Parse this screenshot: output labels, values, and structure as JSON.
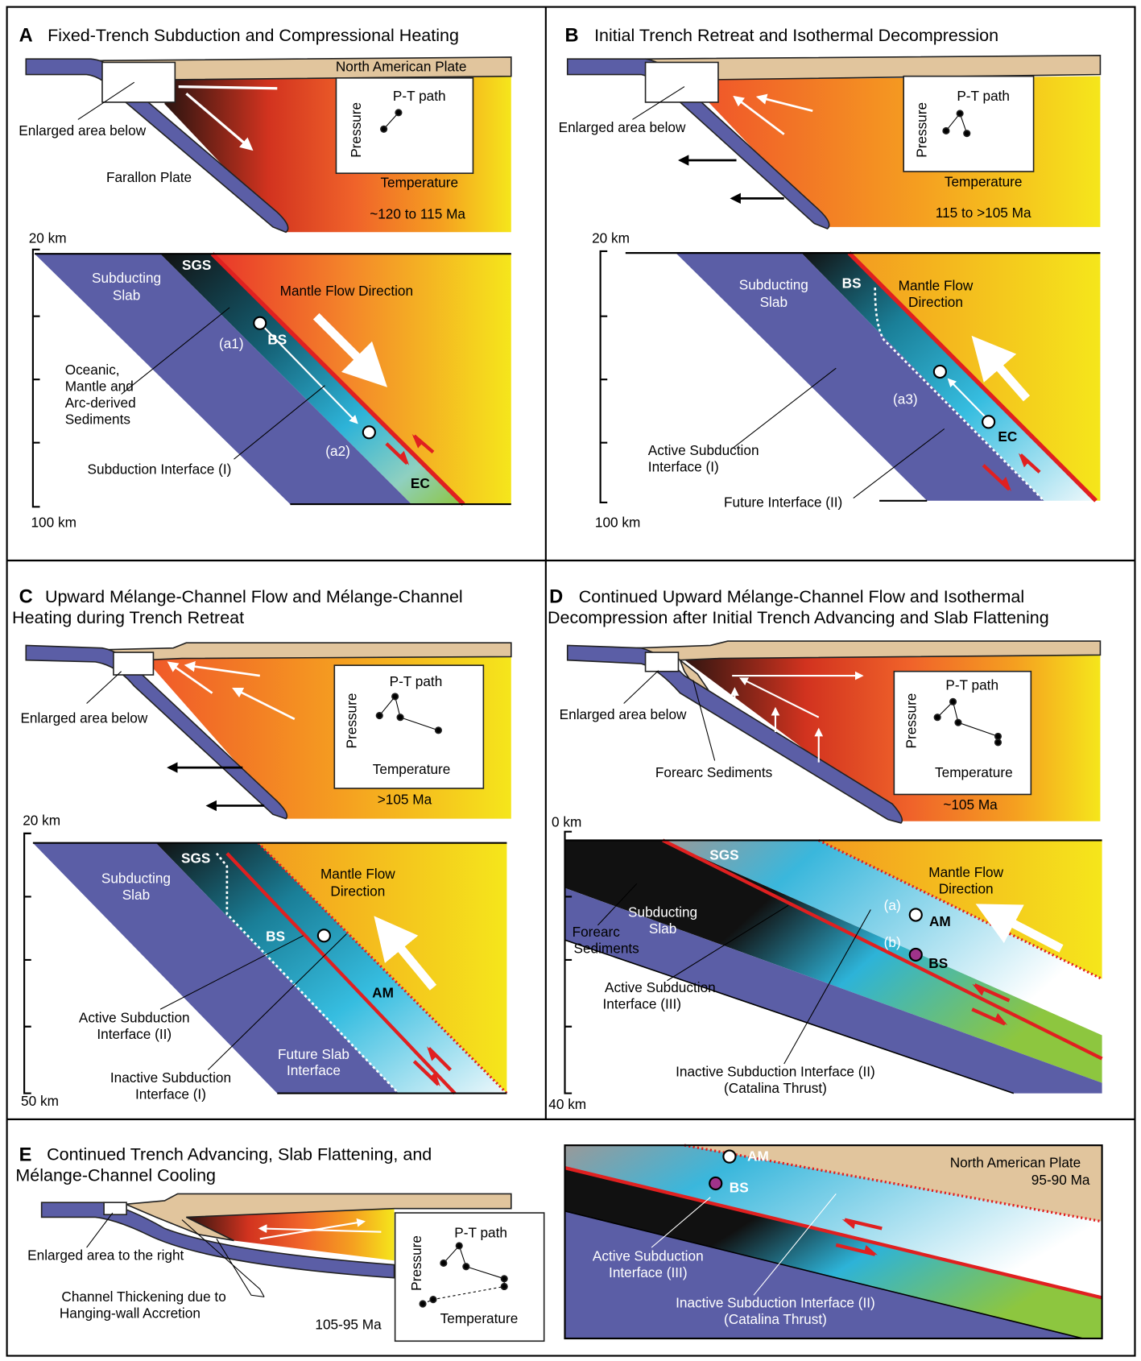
{
  "panels": {
    "a": {
      "letter": "A",
      "title": "Fixed-Trench Subduction and Compressional Heating",
      "plate": "North American Plate",
      "enlarged": "Enlarged area below",
      "slab_plate": "Farallon Plate",
      "inset": {
        "title": "P-T path",
        "y_label": "Pressure",
        "x_label": "Temperature"
      },
      "age": "~120 to 115 Ma",
      "depth_top": "20 km",
      "depth_bottom": "100 km",
      "labels": {
        "slab": [
          "Subducting",
          "Slab"
        ],
        "sgs": "SGS",
        "flow": "Mantle Flow Direction",
        "sediments": [
          "Oceanic,",
          "Mantle and",
          "Arc-derived",
          "Sediments"
        ],
        "a1": "(a1)",
        "bs": "BS",
        "a2": "(a2)",
        "ec": "EC",
        "interface": "Subduction Interface (I)"
      }
    },
    "b": {
      "letter": "B",
      "title": "Initial Trench Retreat and Isothermal Decompression",
      "enlarged": "Enlarged area below",
      "inset": {
        "title": "P-T path",
        "y_label": "Pressure",
        "x_label": "Temperature"
      },
      "age": "115 to >105 Ma",
      "depth_top": "20 km",
      "depth_bottom": "100 km",
      "labels": {
        "slab": [
          "Subducting",
          "Slab"
        ],
        "bs": "BS",
        "flow": [
          "Mantle Flow",
          "Direction"
        ],
        "a3": "(a3)",
        "ec": "EC",
        "active": [
          "Active Subduction",
          "Interface (I)"
        ],
        "future": "Future Interface (II)"
      }
    },
    "c": {
      "letter": "C",
      "title": [
        "Upward Mélange-Channel Flow and Mélange-Channel",
        "Heating during Trench Retreat"
      ],
      "enlarged": "Enlarged area below",
      "inset": {
        "title": "P-T path",
        "y_label": "Pressure",
        "x_label": "Temperature"
      },
      "age": ">105 Ma",
      "depth_top": "20 km",
      "depth_bottom": "50 km",
      "labels": {
        "slab": [
          "Subducting",
          "Slab"
        ],
        "sgs": "SGS",
        "flow": [
          "Mantle Flow",
          "Direction"
        ],
        "bs": "BS",
        "am": "AM",
        "active": [
          "Active Subduction",
          "Interface (II)"
        ],
        "inactive": [
          "Inactive Subduction",
          "Interface (I)"
        ],
        "future": [
          "Future Slab",
          "Interface"
        ]
      }
    },
    "d": {
      "letter": "D",
      "title": [
        "Continued Upward Mélange-Channel Flow and Isothermal",
        "Decompression after Initial Trench Advancing and Slab Flattening"
      ],
      "enlarged": "Enlarged area below",
      "forearc": "Forearc Sediments",
      "inset": {
        "title": "P-T path",
        "y_label": "Pressure",
        "x_label": "Temperature"
      },
      "age": "~105 Ma",
      "depth_top": "0 km",
      "depth_bottom": "40 km",
      "labels": {
        "sgs": "SGS",
        "flow": [
          "Mantle Flow",
          "Direction"
        ],
        "slab": [
          "Subducting",
          "Slab"
        ],
        "forearc": [
          "Forearc",
          "Sediments"
        ],
        "a": "(a)",
        "am": "AM",
        "b": "(b)",
        "bs": "BS",
        "active": [
          "Active Subduction",
          "Interface (III)"
        ],
        "inactive": [
          "Inactive Subduction Interface (II)",
          "(Catalina Thrust)"
        ]
      }
    },
    "e": {
      "letter": "E",
      "title": [
        "Continued Trench Advancing, Slab Flattening, and",
        "Mélange-Channel Cooling"
      ],
      "enlarged": "Enlarged area to the right",
      "thickening": [
        "Channel Thickening due to",
        "Hanging-wall Accretion"
      ],
      "age": "105-95 Ma",
      "inset": {
        "title": "P-T path",
        "y_label": "Pressure",
        "x_label": "Temperature"
      },
      "labels": {
        "am": "AM",
        "bs": "BS",
        "plate": "North American Plate",
        "age": "95-90 Ma",
        "active": [
          "Active Subduction",
          "Interface (III)"
        ],
        "inactive": [
          "Inactive Subduction Interface (II)",
          "(Catalina Thrust)"
        ]
      }
    }
  }
}
